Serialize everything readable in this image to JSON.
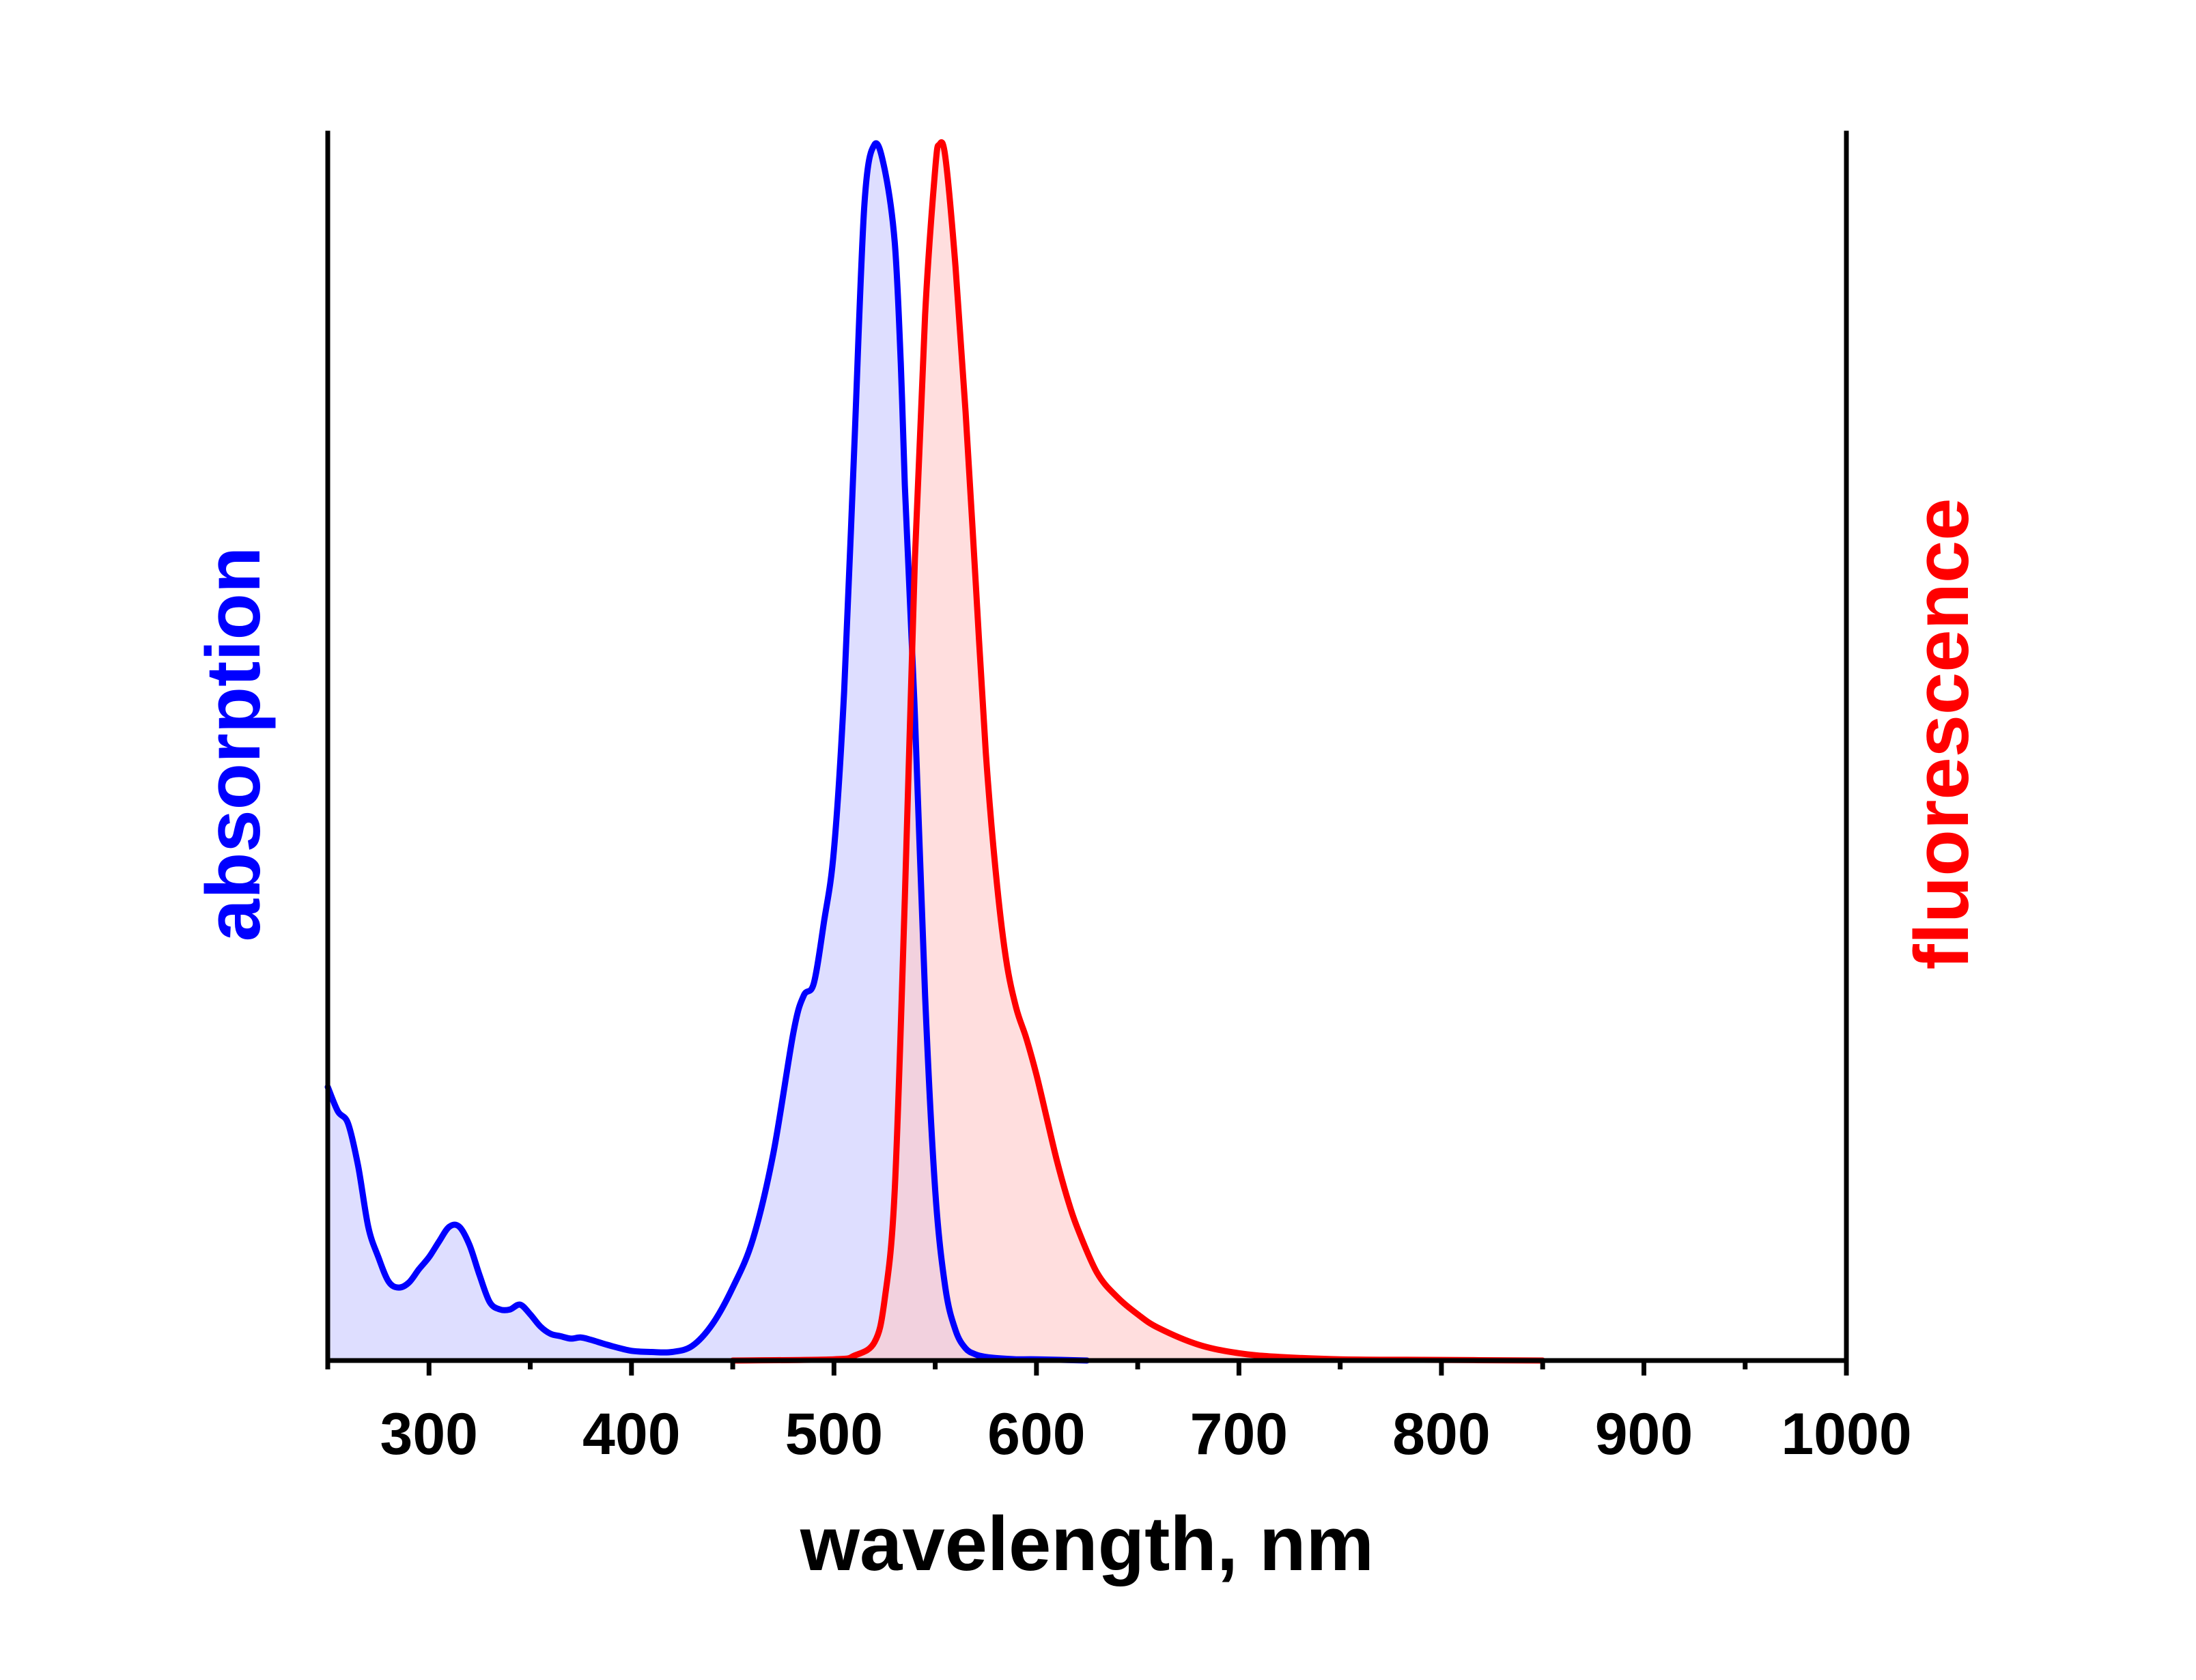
{
  "chart_data": {
    "type": "area",
    "xlabel": "wavelength, nm",
    "xlim": [
      250,
      1000
    ],
    "ylim": [
      0,
      1
    ],
    "x_ticks_major": [
      300,
      400,
      500,
      600,
      700,
      800,
      900,
      1000
    ],
    "x_ticks_minor": [
      250,
      350,
      450,
      550,
      650,
      750,
      850,
      950
    ],
    "grid": false,
    "series": [
      {
        "name": "absorption",
        "axis": "left",
        "color": "#0000ff",
        "fill": "#c8c8ff",
        "x": [
          250,
          255,
          260,
          265,
          270,
          275,
          280,
          285,
          290,
          295,
          300,
          305,
          310,
          315,
          320,
          325,
          330,
          335,
          340,
          345,
          350,
          355,
          360,
          365,
          370,
          375,
          380,
          390,
          400,
          410,
          420,
          430,
          440,
          450,
          460,
          470,
          480,
          485,
          490,
          495,
          500,
          505,
          510,
          515,
          520,
          525,
          530,
          533,
          535,
          540,
          545,
          550,
          555,
          560,
          565,
          570,
          575,
          580,
          590,
          600,
          625
        ],
        "values": [
          0.225,
          0.205,
          0.195,
          0.16,
          0.11,
          0.085,
          0.065,
          0.06,
          0.064,
          0.075,
          0.085,
          0.098,
          0.11,
          0.11,
          0.095,
          0.07,
          0.048,
          0.042,
          0.042,
          0.046,
          0.038,
          0.028,
          0.022,
          0.02,
          0.018,
          0.019,
          0.017,
          0.012,
          0.008,
          0.007,
          0.007,
          0.012,
          0.03,
          0.06,
          0.1,
          0.17,
          0.27,
          0.3,
          0.31,
          0.36,
          0.42,
          0.55,
          0.75,
          0.95,
          1.0,
          0.98,
          0.92,
          0.82,
          0.72,
          0.53,
          0.3,
          0.14,
          0.06,
          0.025,
          0.01,
          0.005,
          0.003,
          0.002,
          0.001,
          0.001,
          0.0
        ],
        "_x_note": "x in nm, values normalized 0-1"
      },
      {
        "name": "fluorescence",
        "axis": "right",
        "color": "#ff0000",
        "fill": "#ffc8c8",
        "x": [
          450,
          500,
          510,
          520,
          525,
          530,
          535,
          540,
          545,
          550,
          552,
          555,
          560,
          565,
          570,
          575,
          580,
          585,
          590,
          595,
          600,
          605,
          610,
          615,
          620,
          630,
          640,
          650,
          660,
          680,
          700,
          720,
          750,
          800,
          850
        ],
        "values": [
          0.0,
          0.001,
          0.004,
          0.015,
          0.05,
          0.14,
          0.38,
          0.66,
          0.86,
          0.98,
          1.0,
          0.99,
          0.9,
          0.78,
          0.64,
          0.5,
          0.4,
          0.33,
          0.29,
          0.265,
          0.235,
          0.2,
          0.165,
          0.135,
          0.11,
          0.072,
          0.052,
          0.038,
          0.027,
          0.013,
          0.006,
          0.003,
          0.001,
          0.0005,
          0.0
        ]
      }
    ]
  }
}
